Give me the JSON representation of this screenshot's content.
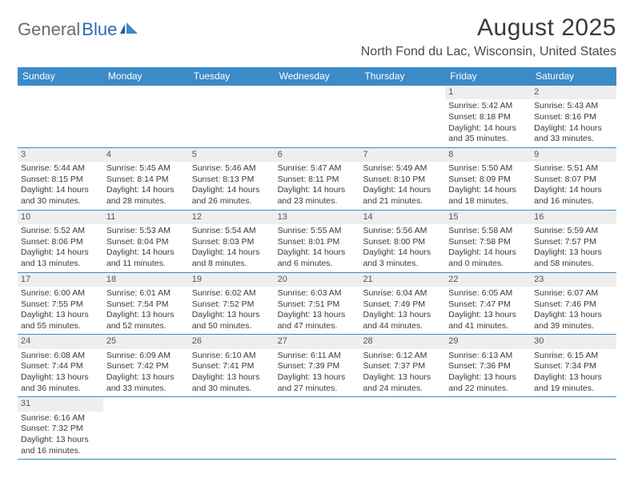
{
  "logo": {
    "text_general": "General",
    "text_blue": "Blue"
  },
  "header": {
    "month_title": "August 2025",
    "location": "North Fond du Lac, Wisconsin, United States"
  },
  "colors": {
    "header_bg": "#3b8bc9",
    "header_fg": "#ffffff",
    "daynum_bg": "#eeeeee",
    "week_border": "#3b8bc9",
    "text": "#3a3a3a"
  },
  "days_of_week": [
    "Sunday",
    "Monday",
    "Tuesday",
    "Wednesday",
    "Thursday",
    "Friday",
    "Saturday"
  ],
  "layout": {
    "columns": 7,
    "first_day_index": 5,
    "days_in_month": 31
  },
  "cells": [
    {
      "n": 1,
      "sr": "Sunrise: 5:42 AM",
      "ss": "Sunset: 8:18 PM",
      "dl": "Daylight: 14 hours and 35 minutes."
    },
    {
      "n": 2,
      "sr": "Sunrise: 5:43 AM",
      "ss": "Sunset: 8:16 PM",
      "dl": "Daylight: 14 hours and 33 minutes."
    },
    {
      "n": 3,
      "sr": "Sunrise: 5:44 AM",
      "ss": "Sunset: 8:15 PM",
      "dl": "Daylight: 14 hours and 30 minutes."
    },
    {
      "n": 4,
      "sr": "Sunrise: 5:45 AM",
      "ss": "Sunset: 8:14 PM",
      "dl": "Daylight: 14 hours and 28 minutes."
    },
    {
      "n": 5,
      "sr": "Sunrise: 5:46 AM",
      "ss": "Sunset: 8:13 PM",
      "dl": "Daylight: 14 hours and 26 minutes."
    },
    {
      "n": 6,
      "sr": "Sunrise: 5:47 AM",
      "ss": "Sunset: 8:11 PM",
      "dl": "Daylight: 14 hours and 23 minutes."
    },
    {
      "n": 7,
      "sr": "Sunrise: 5:49 AM",
      "ss": "Sunset: 8:10 PM",
      "dl": "Daylight: 14 hours and 21 minutes."
    },
    {
      "n": 8,
      "sr": "Sunrise: 5:50 AM",
      "ss": "Sunset: 8:09 PM",
      "dl": "Daylight: 14 hours and 18 minutes."
    },
    {
      "n": 9,
      "sr": "Sunrise: 5:51 AM",
      "ss": "Sunset: 8:07 PM",
      "dl": "Daylight: 14 hours and 16 minutes."
    },
    {
      "n": 10,
      "sr": "Sunrise: 5:52 AM",
      "ss": "Sunset: 8:06 PM",
      "dl": "Daylight: 14 hours and 13 minutes."
    },
    {
      "n": 11,
      "sr": "Sunrise: 5:53 AM",
      "ss": "Sunset: 8:04 PM",
      "dl": "Daylight: 14 hours and 11 minutes."
    },
    {
      "n": 12,
      "sr": "Sunrise: 5:54 AM",
      "ss": "Sunset: 8:03 PM",
      "dl": "Daylight: 14 hours and 8 minutes."
    },
    {
      "n": 13,
      "sr": "Sunrise: 5:55 AM",
      "ss": "Sunset: 8:01 PM",
      "dl": "Daylight: 14 hours and 6 minutes."
    },
    {
      "n": 14,
      "sr": "Sunrise: 5:56 AM",
      "ss": "Sunset: 8:00 PM",
      "dl": "Daylight: 14 hours and 3 minutes."
    },
    {
      "n": 15,
      "sr": "Sunrise: 5:58 AM",
      "ss": "Sunset: 7:58 PM",
      "dl": "Daylight: 14 hours and 0 minutes."
    },
    {
      "n": 16,
      "sr": "Sunrise: 5:59 AM",
      "ss": "Sunset: 7:57 PM",
      "dl": "Daylight: 13 hours and 58 minutes."
    },
    {
      "n": 17,
      "sr": "Sunrise: 6:00 AM",
      "ss": "Sunset: 7:55 PM",
      "dl": "Daylight: 13 hours and 55 minutes."
    },
    {
      "n": 18,
      "sr": "Sunrise: 6:01 AM",
      "ss": "Sunset: 7:54 PM",
      "dl": "Daylight: 13 hours and 52 minutes."
    },
    {
      "n": 19,
      "sr": "Sunrise: 6:02 AM",
      "ss": "Sunset: 7:52 PM",
      "dl": "Daylight: 13 hours and 50 minutes."
    },
    {
      "n": 20,
      "sr": "Sunrise: 6:03 AM",
      "ss": "Sunset: 7:51 PM",
      "dl": "Daylight: 13 hours and 47 minutes."
    },
    {
      "n": 21,
      "sr": "Sunrise: 6:04 AM",
      "ss": "Sunset: 7:49 PM",
      "dl": "Daylight: 13 hours and 44 minutes."
    },
    {
      "n": 22,
      "sr": "Sunrise: 6:05 AM",
      "ss": "Sunset: 7:47 PM",
      "dl": "Daylight: 13 hours and 41 minutes."
    },
    {
      "n": 23,
      "sr": "Sunrise: 6:07 AM",
      "ss": "Sunset: 7:46 PM",
      "dl": "Daylight: 13 hours and 39 minutes."
    },
    {
      "n": 24,
      "sr": "Sunrise: 6:08 AM",
      "ss": "Sunset: 7:44 PM",
      "dl": "Daylight: 13 hours and 36 minutes."
    },
    {
      "n": 25,
      "sr": "Sunrise: 6:09 AM",
      "ss": "Sunset: 7:42 PM",
      "dl": "Daylight: 13 hours and 33 minutes."
    },
    {
      "n": 26,
      "sr": "Sunrise: 6:10 AM",
      "ss": "Sunset: 7:41 PM",
      "dl": "Daylight: 13 hours and 30 minutes."
    },
    {
      "n": 27,
      "sr": "Sunrise: 6:11 AM",
      "ss": "Sunset: 7:39 PM",
      "dl": "Daylight: 13 hours and 27 minutes."
    },
    {
      "n": 28,
      "sr": "Sunrise: 6:12 AM",
      "ss": "Sunset: 7:37 PM",
      "dl": "Daylight: 13 hours and 24 minutes."
    },
    {
      "n": 29,
      "sr": "Sunrise: 6:13 AM",
      "ss": "Sunset: 7:36 PM",
      "dl": "Daylight: 13 hours and 22 minutes."
    },
    {
      "n": 30,
      "sr": "Sunrise: 6:15 AM",
      "ss": "Sunset: 7:34 PM",
      "dl": "Daylight: 13 hours and 19 minutes."
    },
    {
      "n": 31,
      "sr": "Sunrise: 6:16 AM",
      "ss": "Sunset: 7:32 PM",
      "dl": "Daylight: 13 hours and 16 minutes."
    }
  ]
}
